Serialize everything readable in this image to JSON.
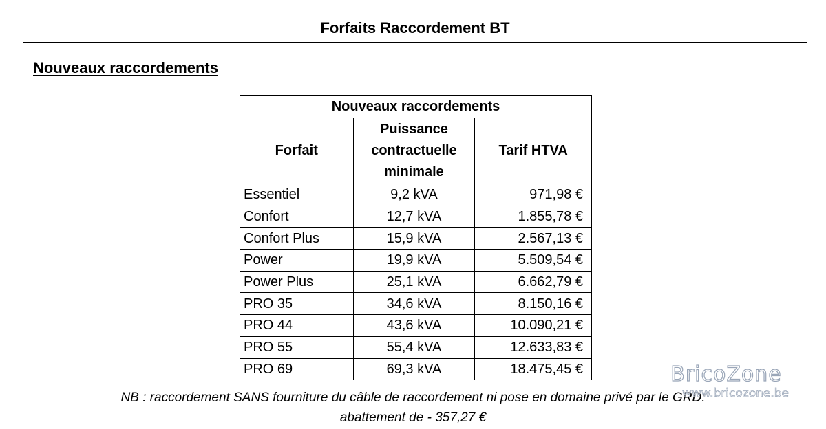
{
  "document": {
    "title": "Forfaits Raccordement BT",
    "section_heading": "Nouveaux raccordements"
  },
  "table": {
    "caption": "Nouveaux raccordements",
    "headers": {
      "forfait": "Forfait",
      "power_line1": "Puissance",
      "power_line2": "contractuelle",
      "power_line3": "minimale",
      "price": "Tarif HTVA"
    },
    "rows": [
      {
        "forfait": "Essentiel",
        "power": "9,2 kVA",
        "price": "971,98 €"
      },
      {
        "forfait": "Confort",
        "power": "12,7 kVA",
        "price": "1.855,78 €"
      },
      {
        "forfait": "Confort Plus",
        "power": "15,9 kVA",
        "price": "2.567,13 €"
      },
      {
        "forfait": "Power",
        "power": "19,9 kVA",
        "price": "5.509,54 €"
      },
      {
        "forfait": "Power Plus",
        "power": "25,1 kVA",
        "price": "6.662,79 €"
      },
      {
        "forfait": "PRO 35",
        "power": "34,6 kVA",
        "price": "8.150,16 €"
      },
      {
        "forfait": "PRO 44",
        "power": "43,6 kVA",
        "price": "10.090,21 €"
      },
      {
        "forfait": "PRO 55",
        "power": "55,4 kVA",
        "price": "12.633,83 €"
      },
      {
        "forfait": "PRO 69",
        "power": "69,3 kVA",
        "price": "18.475,45 €"
      }
    ]
  },
  "note": {
    "line1": "NB : raccordement SANS fourniture du câble de raccordement ni pose en domaine privé par le GRD:",
    "line2": "abattement de - 357,27 €"
  },
  "watermark": {
    "brand": "BricoZone",
    "url": "www.bricozone.be"
  }
}
